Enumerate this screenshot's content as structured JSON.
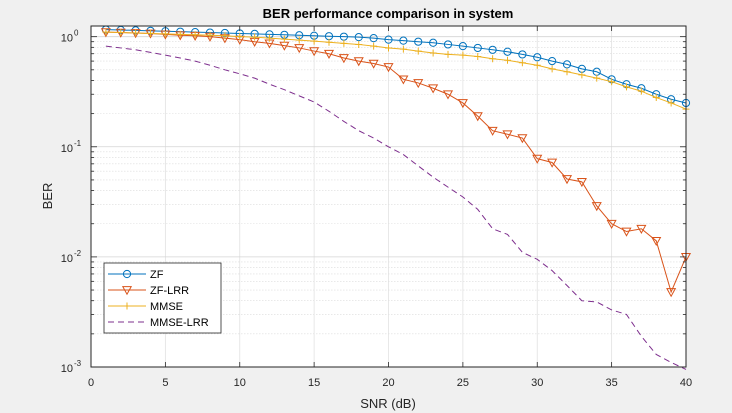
{
  "chart_data": {
    "type": "line",
    "title": "BER performance comparison in system",
    "xlabel": "SNR (dB)",
    "ylabel": "BER",
    "xlim": [
      0,
      40
    ],
    "ylim": [
      0.001,
      1.25
    ],
    "yscale": "log",
    "grid": true,
    "minor_grid": true,
    "legend_position": "bottom-left",
    "x_ticks": [
      0,
      5,
      10,
      15,
      20,
      25,
      30,
      35,
      40
    ],
    "y_ticks": [
      {
        "value": 1,
        "base": "10",
        "exp": "0"
      },
      {
        "value": 0.1,
        "base": "10",
        "exp": "-1"
      },
      {
        "value": 0.01,
        "base": "10",
        "exp": "-2"
      },
      {
        "value": 0.001,
        "base": "10",
        "exp": "-3"
      }
    ],
    "series": [
      {
        "name": "ZF",
        "color": "#0072bd",
        "marker": "circle",
        "line": "solid",
        "x": [
          1,
          2,
          3,
          4,
          5,
          6,
          7,
          8,
          9,
          10,
          11,
          12,
          13,
          14,
          15,
          16,
          17,
          18,
          19,
          20,
          21,
          22,
          23,
          24,
          25,
          26,
          27,
          28,
          29,
          30,
          31,
          32,
          33,
          34,
          35,
          36,
          37,
          38,
          39,
          40
        ],
        "values": [
          1.16,
          1.15,
          1.14,
          1.13,
          1.12,
          1.11,
          1.1,
          1.09,
          1.08,
          1.07,
          1.06,
          1.05,
          1.04,
          1.03,
          1.02,
          1.01,
          1.0,
          0.99,
          0.97,
          0.94,
          0.92,
          0.9,
          0.88,
          0.85,
          0.82,
          0.79,
          0.76,
          0.73,
          0.69,
          0.65,
          0.6,
          0.56,
          0.51,
          0.48,
          0.41,
          0.37,
          0.34,
          0.3,
          0.27,
          0.25
        ]
      },
      {
        "name": "ZF-LRR",
        "color": "#d95319",
        "marker": "triangle-down",
        "line": "solid",
        "x": [
          1,
          2,
          3,
          4,
          5,
          6,
          7,
          8,
          9,
          10,
          11,
          12,
          13,
          14,
          15,
          16,
          17,
          18,
          19,
          20,
          21,
          22,
          23,
          24,
          25,
          26,
          27,
          28,
          29,
          30,
          31,
          32,
          33,
          34,
          35,
          36,
          37,
          38,
          39,
          40
        ],
        "values": [
          1.1,
          1.09,
          1.08,
          1.07,
          1.05,
          1.03,
          1.02,
          1.0,
          0.97,
          0.94,
          0.9,
          0.87,
          0.83,
          0.79,
          0.74,
          0.7,
          0.64,
          0.6,
          0.57,
          0.53,
          0.41,
          0.38,
          0.34,
          0.3,
          0.25,
          0.19,
          0.14,
          0.13,
          0.12,
          0.078,
          0.072,
          0.051,
          0.048,
          0.029,
          0.02,
          0.017,
          0.018,
          0.014,
          0.0048,
          0.01
        ]
      },
      {
        "name": "MMSE",
        "color": "#edb120",
        "marker": "plus",
        "line": "solid",
        "x": [
          1,
          2,
          3,
          4,
          5,
          6,
          7,
          8,
          9,
          10,
          11,
          12,
          13,
          14,
          15,
          16,
          17,
          18,
          19,
          20,
          21,
          22,
          23,
          24,
          25,
          26,
          27,
          28,
          29,
          30,
          31,
          32,
          33,
          34,
          35,
          36,
          37,
          38,
          39,
          40
        ],
        "values": [
          1.1,
          1.09,
          1.08,
          1.07,
          1.06,
          1.05,
          1.04,
          1.03,
          1.02,
          1.0,
          0.99,
          0.97,
          0.95,
          0.93,
          0.91,
          0.89,
          0.87,
          0.85,
          0.82,
          0.79,
          0.77,
          0.74,
          0.71,
          0.69,
          0.68,
          0.66,
          0.63,
          0.61,
          0.58,
          0.55,
          0.51,
          0.48,
          0.45,
          0.42,
          0.39,
          0.35,
          0.32,
          0.28,
          0.25,
          0.22
        ]
      },
      {
        "name": "MMSE-LRR",
        "color": "#7e2f8e",
        "marker": "none",
        "line": "dashed",
        "x": [
          1,
          2,
          3,
          4,
          5,
          6,
          7,
          8,
          9,
          10,
          11,
          12,
          13,
          14,
          15,
          16,
          17,
          18,
          19,
          20,
          21,
          22,
          23,
          24,
          25,
          26,
          27,
          28,
          29,
          30,
          31,
          32,
          33,
          34,
          35,
          36,
          37,
          38,
          39,
          40
        ],
        "values": [
          0.82,
          0.79,
          0.76,
          0.72,
          0.68,
          0.64,
          0.6,
          0.55,
          0.5,
          0.46,
          0.42,
          0.37,
          0.33,
          0.29,
          0.255,
          0.21,
          0.17,
          0.14,
          0.12,
          0.1,
          0.085,
          0.067,
          0.053,
          0.043,
          0.035,
          0.027,
          0.018,
          0.016,
          0.011,
          0.0095,
          0.0075,
          0.0055,
          0.004,
          0.0039,
          0.0033,
          0.003,
          0.0019,
          0.0013,
          0.0011,
          0.00095
        ]
      }
    ]
  }
}
